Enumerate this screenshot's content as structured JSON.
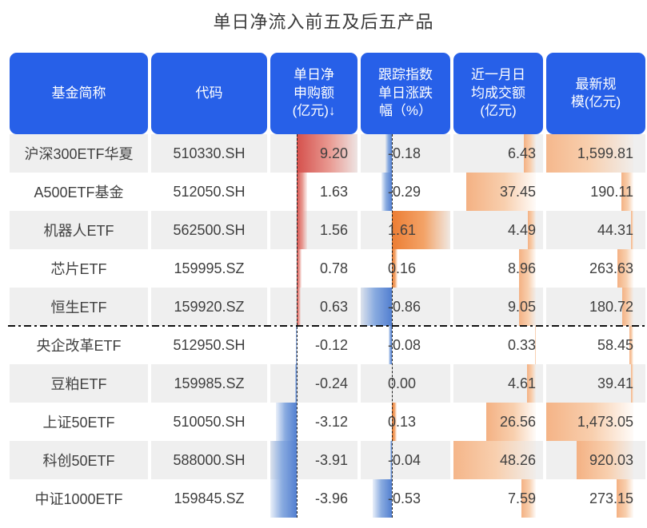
{
  "title": "单日净流入前五及后五产品",
  "table": {
    "columns": {
      "name": "基金简称",
      "code": "代码",
      "net": "单日净\n申购额\n(亿元)↓",
      "chg": "跟踪指数\n单日涨跌\n幅（%）",
      "turnover": "近一月日\n均成交额\n(亿元)",
      "aum": "最新规\n模(亿元)"
    },
    "sort_icon": "↓",
    "rows": [
      {
        "name": "沪深300ETF华夏",
        "code": "510330.SH",
        "net": "9.20",
        "chg": "-0.18",
        "turnover": "6.43",
        "aum": "1,599.81"
      },
      {
        "name": "A500ETF基金",
        "code": "512050.SH",
        "net": "1.63",
        "chg": "-0.29",
        "turnover": "37.45",
        "aum": "190.11"
      },
      {
        "name": "机器人ETF",
        "code": "562500.SH",
        "net": "1.56",
        "chg": "1.61",
        "turnover": "4.49",
        "aum": "44.31"
      },
      {
        "name": "芯片ETF",
        "code": "159995.SZ",
        "net": "0.78",
        "chg": "0.16",
        "turnover": "8.96",
        "aum": "263.63"
      },
      {
        "name": "恒生ETF",
        "code": "159920.SZ",
        "net": "0.63",
        "chg": "-0.86",
        "turnover": "9.05",
        "aum": "180.72"
      },
      {
        "name": "央企改革ETF",
        "code": "512950.SH",
        "net": "-0.12",
        "chg": "-0.08",
        "turnover": "0.33",
        "aum": "58.45"
      },
      {
        "name": "豆粕ETF",
        "code": "159985.SZ",
        "net": "-0.24",
        "chg": "0.00",
        "turnover": "4.61",
        "aum": "39.41"
      },
      {
        "name": "上证50ETF",
        "code": "510050.SH",
        "net": "-3.12",
        "chg": "0.13",
        "turnover": "26.56",
        "aum": "1,473.05"
      },
      {
        "name": "科创50ETF",
        "code": "588000.SH",
        "net": "-3.91",
        "chg": "-0.04",
        "turnover": "48.26",
        "aum": "920.03"
      },
      {
        "name": "中证1000ETF",
        "code": "159845.SZ",
        "net": "-3.96",
        "chg": "-0.53",
        "turnover": "7.59",
        "aum": "273.15"
      }
    ]
  },
  "chart_data": {
    "type": "table",
    "title": "单日净流入前五及后五产品",
    "categories": [
      "沪深300ETF华夏",
      "A500ETF基金",
      "机器人ETF",
      "芯片ETF",
      "恒生ETF",
      "央企改革ETF",
      "豆粕ETF",
      "上证50ETF",
      "科创50ETF",
      "中证1000ETF"
    ],
    "codes": [
      "510330.SH",
      "512050.SH",
      "562500.SH",
      "159995.SZ",
      "159920.SZ",
      "512950.SH",
      "159985.SZ",
      "510050.SH",
      "588000.SH",
      "159845.SZ"
    ],
    "series": [
      {
        "name": "单日净申购额(亿元)",
        "style": "diverging-bar",
        "values": [
          9.2,
          1.63,
          1.56,
          0.78,
          0.63,
          -0.12,
          -0.24,
          -3.12,
          -3.91,
          -3.96
        ]
      },
      {
        "name": "跟踪指数单日涨跌幅(%)",
        "style": "diverging-bar",
        "values": [
          -0.18,
          -0.29,
          1.61,
          0.16,
          -0.86,
          -0.08,
          0.0,
          0.13,
          -0.04,
          -0.53
        ]
      },
      {
        "name": "近一月日均成交额(亿元)",
        "style": "data-bar",
        "values": [
          6.43,
          37.45,
          4.49,
          8.96,
          9.05,
          0.33,
          4.61,
          26.56,
          48.26,
          7.59
        ]
      },
      {
        "name": "最新规模(亿元)",
        "style": "data-bar",
        "values": [
          1599.81,
          190.11,
          44.31,
          263.63,
          180.72,
          58.45,
          39.41,
          1473.05,
          920.03,
          273.15
        ]
      }
    ],
    "layout": {
      "top5_bottom5_divider_after_row": 5,
      "zero_axis_lines": "dashed vertical lines in columns 3 and 4",
      "row_striping": "odd rows shaded"
    },
    "colors": {
      "header_bg": "#2760e8",
      "header_text": "#ffffff",
      "positive_net_bar": "#d5504c",
      "negative_net_bar": "#527fd0",
      "positive_index_bar": "#ec7d33",
      "negative_index_bar": "#527fd0",
      "scale_bar": "#f4b183",
      "row_stripe": "#efefef",
      "body_text": "#404040",
      "title_text": "#3a3a3a"
    }
  }
}
